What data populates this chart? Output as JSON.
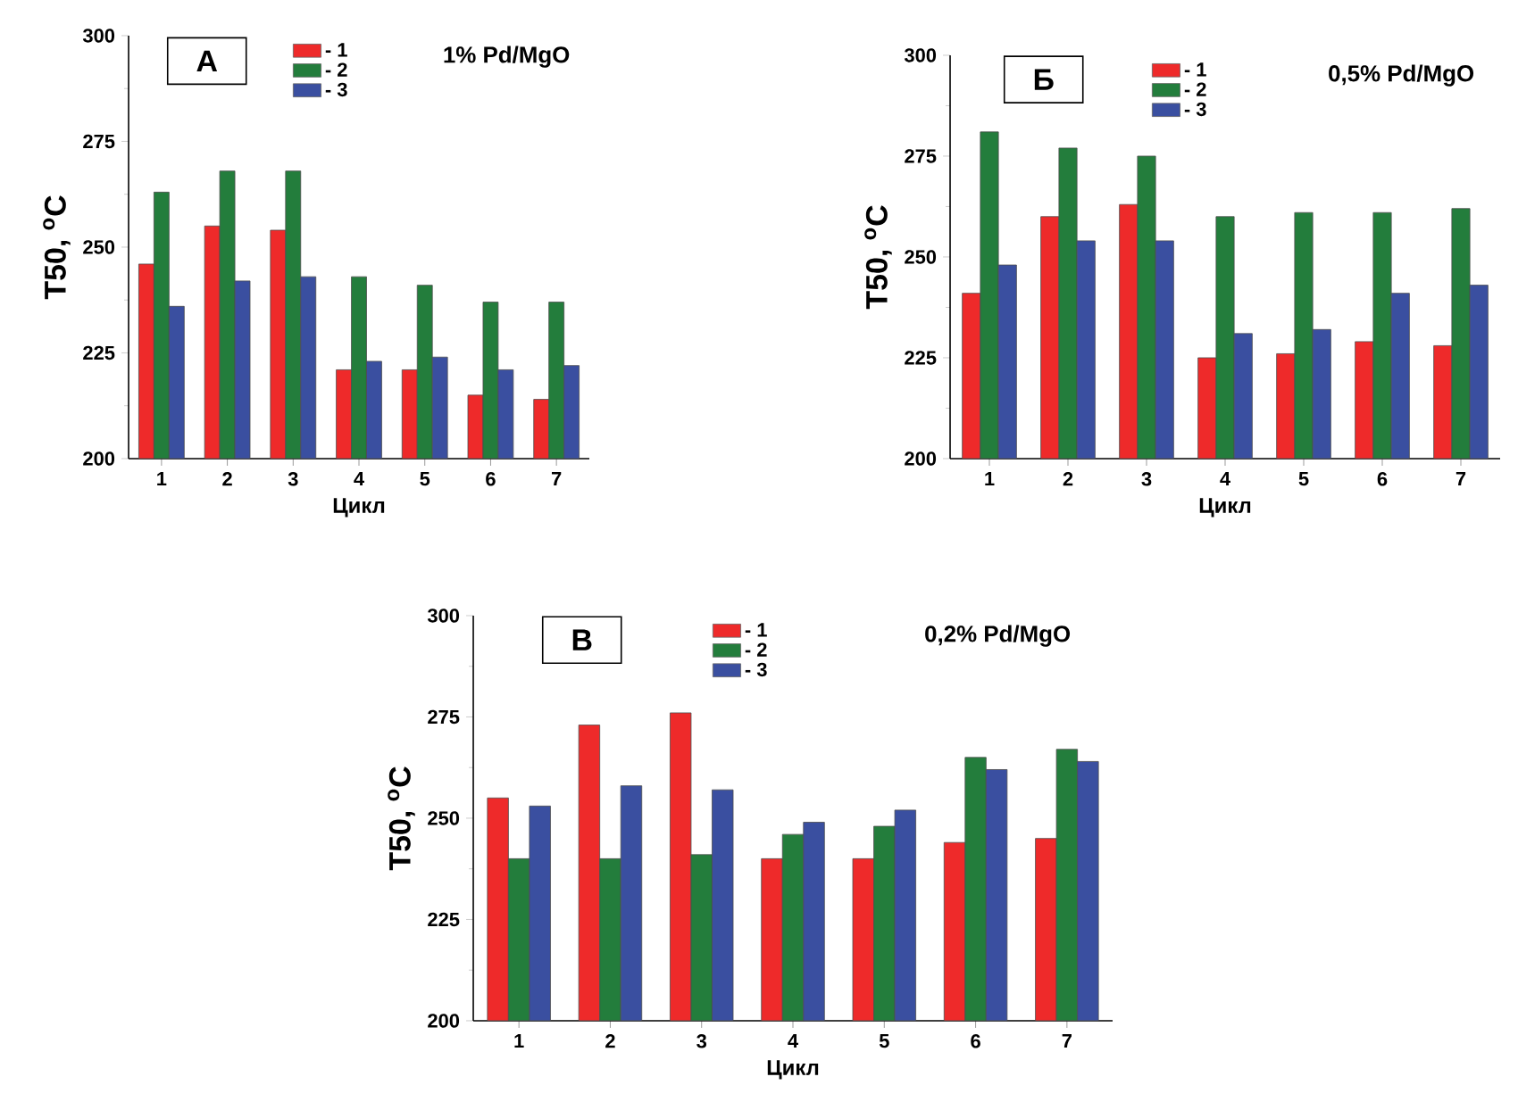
{
  "chart_data": [
    {
      "type": "bar",
      "title": "А",
      "subtitle": "1% Pd/MgO",
      "xlabel": "Цикл",
      "ylabel": "T50, $^{o}$C",
      "categories": [
        "1",
        "2",
        "3",
        "4",
        "5",
        "6",
        "7"
      ],
      "ylim": [
        200,
        300
      ],
      "yticks": [
        200,
        225,
        250,
        275,
        300
      ],
      "legend": "top",
      "series": [
        {
          "name": "- 1",
          "color": "#ee2a2a",
          "values": [
            246,
            255,
            254,
            221,
            221,
            215,
            214
          ]
        },
        {
          "name": "- 2",
          "color": "#237d3c",
          "values": [
            263,
            268,
            268,
            243,
            241,
            237,
            237
          ]
        },
        {
          "name": "- 3",
          "color": "#3a4fa0",
          "values": [
            236,
            242,
            243,
            223,
            224,
            221,
            222
          ]
        }
      ]
    },
    {
      "type": "bar",
      "title": "Б",
      "subtitle": "0,5% Pd/MgO",
      "xlabel": "Цикл",
      "ylabel": "T50, $^{o}$C",
      "categories": [
        "1",
        "2",
        "3",
        "4",
        "5",
        "6",
        "7"
      ],
      "ylim": [
        200,
        300
      ],
      "yticks": [
        200,
        225,
        250,
        275,
        300
      ],
      "legend": "top",
      "series": [
        {
          "name": "- 1",
          "color": "#ee2a2a",
          "values": [
            241,
            260,
            263,
            225,
            226,
            229,
            228
          ]
        },
        {
          "name": "- 2",
          "color": "#237d3c",
          "values": [
            281,
            277,
            275,
            260,
            261,
            261,
            262
          ]
        },
        {
          "name": "- 3",
          "color": "#3a4fa0",
          "values": [
            248,
            254,
            254,
            231,
            232,
            241,
            243
          ]
        }
      ]
    },
    {
      "type": "bar",
      "title": "В",
      "subtitle": "0,2% Pd/MgO",
      "xlabel": "Цикл",
      "ylabel": "T50, $^{o}$C",
      "categories": [
        "1",
        "2",
        "3",
        "4",
        "5",
        "6",
        "7"
      ],
      "ylim": [
        200,
        300
      ],
      "yticks": [
        200,
        225,
        250,
        275,
        300
      ],
      "legend": "top",
      "series": [
        {
          "name": "- 1",
          "color": "#ee2a2a",
          "values": [
            255,
            273,
            276,
            240,
            240,
            244,
            245
          ]
        },
        {
          "name": "- 2",
          "color": "#237d3c",
          "values": [
            240,
            240,
            241,
            246,
            248,
            265,
            267
          ]
        },
        {
          "name": "- 3",
          "color": "#3a4fa0",
          "values": [
            253,
            258,
            257,
            249,
            252,
            262,
            264
          ]
        }
      ]
    }
  ]
}
